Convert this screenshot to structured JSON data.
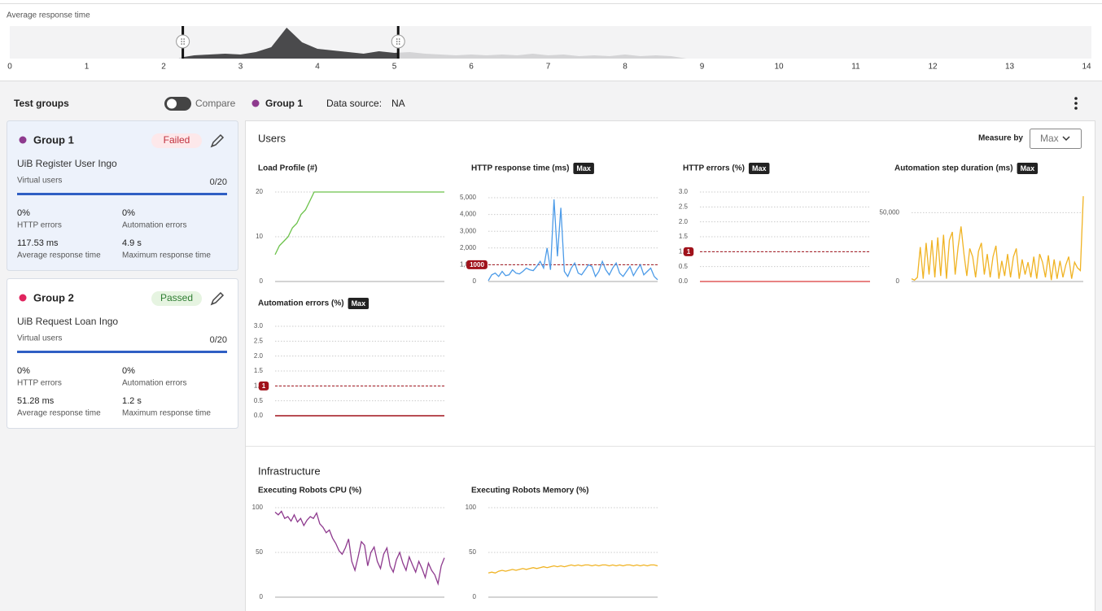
{
  "timeline": {
    "title": "Average response time",
    "xlim": [
      0,
      14
    ],
    "xticks": [
      0,
      1,
      2,
      3,
      4,
      5,
      6,
      7,
      8,
      9,
      10,
      11,
      12,
      13,
      14
    ],
    "selection": [
      2.25,
      5.05
    ],
    "x": [
      2.2,
      2.4,
      2.6,
      2.8,
      3,
      3.2,
      3.4,
      3.6,
      3.8,
      4,
      4.2,
      4.4,
      4.6,
      4.8,
      5,
      5.2,
      5.4,
      5.6,
      5.8,
      6,
      6.2,
      6.4,
      6.6,
      6.8,
      7,
      7.2,
      7.4,
      7.6,
      7.8,
      8,
      8.2,
      8.4,
      8.6,
      8.8
    ],
    "values": [
      1,
      4,
      5,
      6,
      5,
      8,
      14,
      38,
      20,
      12,
      10,
      8,
      6,
      9,
      7,
      8,
      6,
      5,
      4,
      5,
      4,
      5,
      4,
      6,
      4,
      5,
      3,
      4,
      3,
      5,
      3,
      4,
      3,
      0
    ]
  },
  "toolbar": {
    "title": "Test groups",
    "compare": "Compare",
    "group_legend": "Group 1",
    "group_color": "#8e3a8e",
    "data_source_label": "Data source:",
    "data_source": "NA"
  },
  "groups": [
    {
      "name": "Group 1",
      "color": "#8e3a8e",
      "status": "Failed",
      "test": "UiB Register User Ingo",
      "users_label": "Virtual users",
      "users": "0/20",
      "stats": [
        {
          "value": "0%",
          "label": "HTTP errors"
        },
        {
          "value": "0%",
          "label": "Automation errors"
        },
        {
          "value": "117.53 ms",
          "label": "Average response time"
        },
        {
          "value": "4.9 s",
          "label": "Maximum response time"
        }
      ]
    },
    {
      "name": "Group 2",
      "color": "#e0245e",
      "status": "Passed",
      "test": "UiB Request Loan Ingo",
      "users_label": "Virtual users",
      "users": "0/20",
      "stats": [
        {
          "value": "0%",
          "label": "HTTP errors"
        },
        {
          "value": "0%",
          "label": "Automation errors"
        },
        {
          "value": "51.28 ms",
          "label": "Average response time"
        },
        {
          "value": "1.2 s",
          "label": "Maximum response time"
        }
      ]
    }
  ],
  "users_section": {
    "title": "Users",
    "measure_label": "Measure by",
    "measure": "Max"
  },
  "infrastructure_section": {
    "title": "Infrastructure"
  },
  "charts": [
    {
      "type": "line",
      "title": "Load Profile (#)",
      "color": "#6cc24a",
      "ylim": [
        0,
        20
      ],
      "yticks": [
        0,
        10,
        20
      ],
      "values": [
        6,
        8,
        9,
        10,
        12,
        13,
        15,
        16,
        18,
        20,
        20,
        20,
        20,
        20,
        20,
        20,
        20,
        20,
        20,
        20,
        20,
        20,
        20,
        20,
        20,
        20,
        20,
        20,
        20,
        20,
        20,
        20,
        20,
        20,
        20,
        20,
        20,
        20,
        20,
        20
      ]
    },
    {
      "type": "line",
      "title": "HTTP response time (ms)",
      "badge": "Max",
      "color": "#4c9be8",
      "ylim": [
        0,
        5000
      ],
      "yticks": [
        0,
        {
          "value": 1000,
          "label": "1,000"
        },
        {
          "value": 2000,
          "label": "2,000"
        },
        {
          "value": 3000,
          "label": "3,000"
        },
        {
          "value": 4000,
          "label": "4,000"
        },
        {
          "value": 5000,
          "label": "5,000"
        }
      ],
      "threshold": {
        "value": 1000,
        "label": "1000"
      },
      "values": [
        50,
        400,
        500,
        300,
        600,
        350,
        400,
        700,
        500,
        450,
        600,
        800,
        700,
        650,
        900,
        1200,
        800,
        2000,
        700,
        4900,
        1500,
        4400,
        600,
        300,
        800,
        1100,
        500,
        400,
        700,
        1000,
        900,
        300,
        600,
        1200,
        700,
        400,
        800,
        1100,
        500,
        300,
        600,
        900,
        350,
        700,
        1000,
        400,
        600,
        800,
        300,
        100
      ]
    },
    {
      "type": "line",
      "title": "HTTP errors (%)",
      "badge": "Max",
      "color": "#e05a5a",
      "ylim": [
        0,
        3
      ],
      "yticks": [
        {
          "value": 0,
          "label": "0.0"
        },
        0.5,
        {
          "value": 1,
          "label": "1.0"
        },
        1.5,
        {
          "value": 2,
          "label": "2.0"
        },
        2.5,
        {
          "value": 3,
          "label": "3.0"
        }
      ],
      "threshold": {
        "value": 1,
        "label": "1"
      },
      "values": [
        0,
        0,
        0,
        0,
        0,
        0,
        0,
        0,
        0,
        0,
        0,
        0,
        0,
        0,
        0,
        0,
        0,
        0,
        0,
        0
      ]
    },
    {
      "type": "line",
      "title": "Automation step duration (ms)",
      "badge": "Max",
      "color": "#f0b323",
      "ylim": [
        0,
        65000
      ],
      "yticks": [
        0,
        {
          "value": 50000,
          "label": "50,000"
        }
      ],
      "values": [
        2000,
        1000,
        3000,
        25000,
        2000,
        28000,
        5000,
        30000,
        3000,
        32000,
        4000,
        34000,
        2000,
        30000,
        36000,
        5000,
        25000,
        40000,
        20000,
        4000,
        24000,
        18000,
        3000,
        22000,
        28000,
        5000,
        20000,
        3000,
        18000,
        26000,
        2000,
        15000,
        4000,
        20000,
        3000,
        18000,
        24000,
        2000,
        16000,
        5000,
        14000,
        3000,
        18000,
        2000,
        20000,
        14000,
        3000,
        19000,
        1000,
        16000,
        2000,
        15000,
        3000,
        12000,
        18000,
        2000,
        14000,
        10000,
        8000,
        62000
      ]
    },
    {
      "type": "line",
      "title": "Automation errors (%)",
      "badge": "Max",
      "color": "#a0121b",
      "ylim": [
        0,
        3
      ],
      "yticks": [
        {
          "value": 0,
          "label": "0.0"
        },
        0.5,
        {
          "value": 1,
          "label": "1.0"
        },
        1.5,
        {
          "value": 2,
          "label": "2.0"
        },
        2.5,
        {
          "value": 3,
          "label": "3.0"
        }
      ],
      "threshold": {
        "value": 1,
        "label": "1"
      },
      "values": [
        0,
        0,
        0,
        0,
        0,
        0,
        0,
        0,
        0,
        0,
        0,
        0,
        0,
        0,
        0,
        0,
        0,
        0,
        0,
        0
      ]
    },
    {
      "type": "line",
      "title": "Executing Robots CPU (%)",
      "color": "#8e3a8e",
      "ylim": [
        0,
        100
      ],
      "yticks": [
        0,
        50,
        100
      ],
      "values": [
        95,
        92,
        96,
        88,
        90,
        85,
        92,
        84,
        88,
        80,
        86,
        90,
        88,
        94,
        82,
        78,
        72,
        75,
        66,
        60,
        52,
        48,
        55,
        65,
        40,
        30,
        45,
        62,
        58,
        35,
        50,
        56,
        40,
        32,
        48,
        55,
        35,
        28,
        42,
        50,
        38,
        30,
        45,
        36,
        28,
        40,
        32,
        22,
        38,
        30,
        25,
        15,
        35,
        44
      ]
    },
    {
      "type": "line",
      "title": "Executing Robots Memory (%)",
      "color": "#f0b323",
      "ylim": [
        0,
        100
      ],
      "yticks": [
        0,
        50,
        100
      ],
      "values": [
        27,
        28,
        27,
        29,
        30,
        29,
        30,
        31,
        30,
        31,
        32,
        31,
        32,
        33,
        32,
        33,
        34,
        33,
        34,
        35,
        34,
        35,
        34,
        35,
        36,
        35,
        36,
        35,
        36,
        36,
        35,
        36,
        35,
        36,
        36,
        35,
        36,
        35,
        36,
        35,
        36,
        36,
        35,
        36,
        35,
        36,
        35,
        36,
        36,
        35
      ]
    }
  ]
}
